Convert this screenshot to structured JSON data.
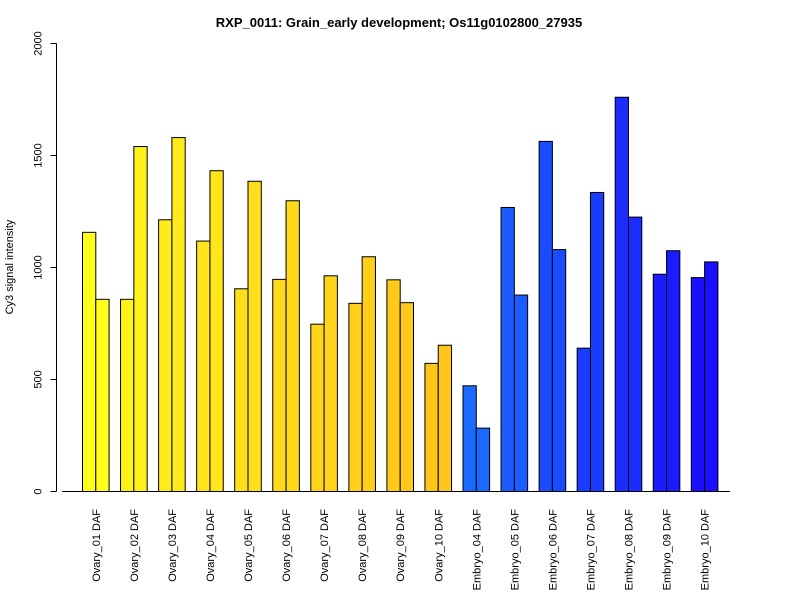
{
  "chart_data": {
    "type": "bar",
    "title": "RXP_0011: Grain_early development; Os11g0102800_27935",
    "xlabel": "",
    "ylabel": "Cy3 signal intensity",
    "ylim": [
      0,
      2000
    ],
    "yticks": [
      0,
      500,
      1000,
      1500,
      2000
    ],
    "grid": false,
    "legend": "none",
    "categories": [
      "Ovary_01 DAF",
      "Ovary_02 DAF",
      "Ovary_03 DAF",
      "Ovary_04 DAF",
      "Ovary_05 DAF",
      "Ovary_06 DAF",
      "Ovary_07 DAF",
      "Ovary_08 DAF",
      "Ovary_09 DAF",
      "Ovary_10 DAF",
      "Embryo_04 DAF",
      "Embryo_05 DAF",
      "Embryo_06 DAF",
      "Embryo_07 DAF",
      "Embryo_08 DAF",
      "Embryo_09 DAF",
      "Embryo_10 DAF"
    ],
    "series": [
      {
        "values": [
          1157,
          858,
          1213,
          1118,
          905,
          947,
          747,
          840,
          945,
          572,
          472,
          1268,
          1563,
          640,
          1760,
          970,
          955
        ]
      },
      {
        "values": [
          858,
          1540,
          1580,
          1432,
          1385,
          1298,
          963,
          1048,
          843,
          653,
          283,
          877,
          1080,
          1335,
          1225,
          1075,
          1025
        ]
      }
    ],
    "colors": [
      "#FFFF1A",
      "#FFF21A",
      "#FFEB1A",
      "#FFE51A",
      "#FFDF1A",
      "#FFD91A",
      "#FFD41A",
      "#FFCF1A",
      "#FFCA1A",
      "#FFC51A",
      "#1A6AFF",
      "#1A5CFF",
      "#1A4CFF",
      "#1A3CFF",
      "#1A2CFF",
      "#1A1CFF",
      "#1A10FF"
    ]
  }
}
